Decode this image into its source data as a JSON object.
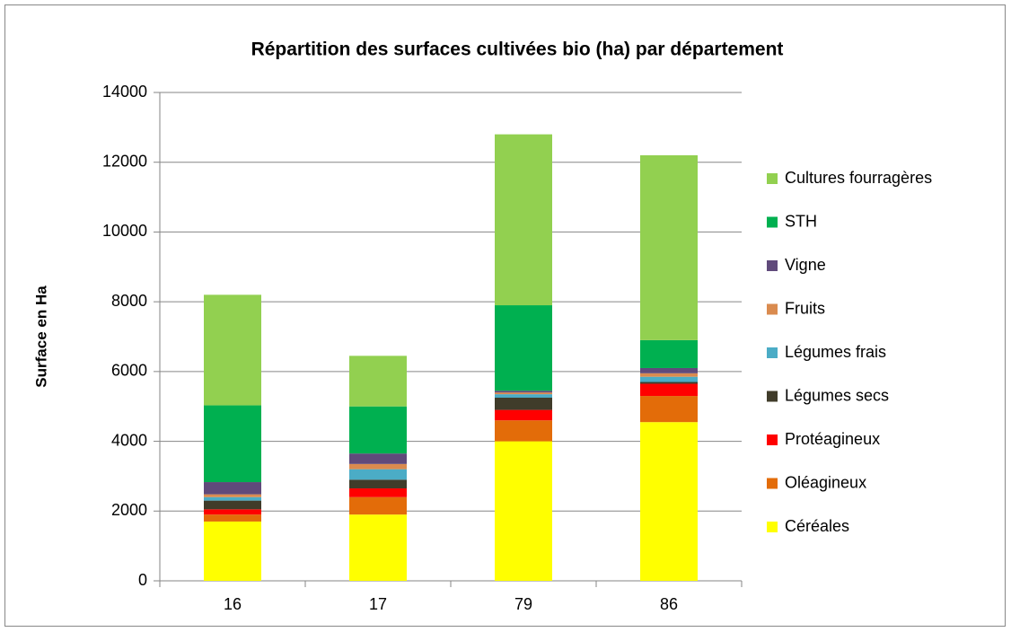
{
  "chart_data": {
    "type": "stacked_bar",
    "title": "Répartition des surfaces cultivées bio (ha) par département",
    "y_label": "Surface en Ha",
    "categories": [
      "16",
      "17",
      "79",
      "86"
    ],
    "ylim": [
      0,
      14000
    ],
    "yticks": [
      0,
      2000,
      4000,
      6000,
      8000,
      10000,
      12000,
      14000
    ],
    "grid": true,
    "legend": "right",
    "series": [
      {
        "name": "Céréales",
        "color": "#ffff00",
        "values": [
          1700,
          1900,
          4000,
          4550
        ]
      },
      {
        "name": "Oléagineux",
        "color": "#e36c09",
        "values": [
          200,
          500,
          600,
          750
        ]
      },
      {
        "name": "Protéagineux",
        "color": "#ff0000",
        "values": [
          150,
          250,
          300,
          350
        ]
      },
      {
        "name": "Légumes secs",
        "color": "#403c2a",
        "values": [
          250,
          250,
          350,
          50
        ]
      },
      {
        "name": "Légumes frais",
        "color": "#4bacc6",
        "values": [
          100,
          300,
          100,
          150
        ]
      },
      {
        "name": "Fruits",
        "color": "#da8b4f",
        "values": [
          80,
          150,
          50,
          100
        ]
      },
      {
        "name": "Vigne",
        "color": "#604a7b",
        "values": [
          350,
          300,
          50,
          150
        ]
      },
      {
        "name": "STH",
        "color": "#00b050",
        "values": [
          2200,
          1350,
          2450,
          800
        ]
      },
      {
        "name": "Cultures fourragères",
        "color": "#92d050",
        "values": [
          3170,
          1450,
          4900,
          5300
        ]
      }
    ]
  }
}
